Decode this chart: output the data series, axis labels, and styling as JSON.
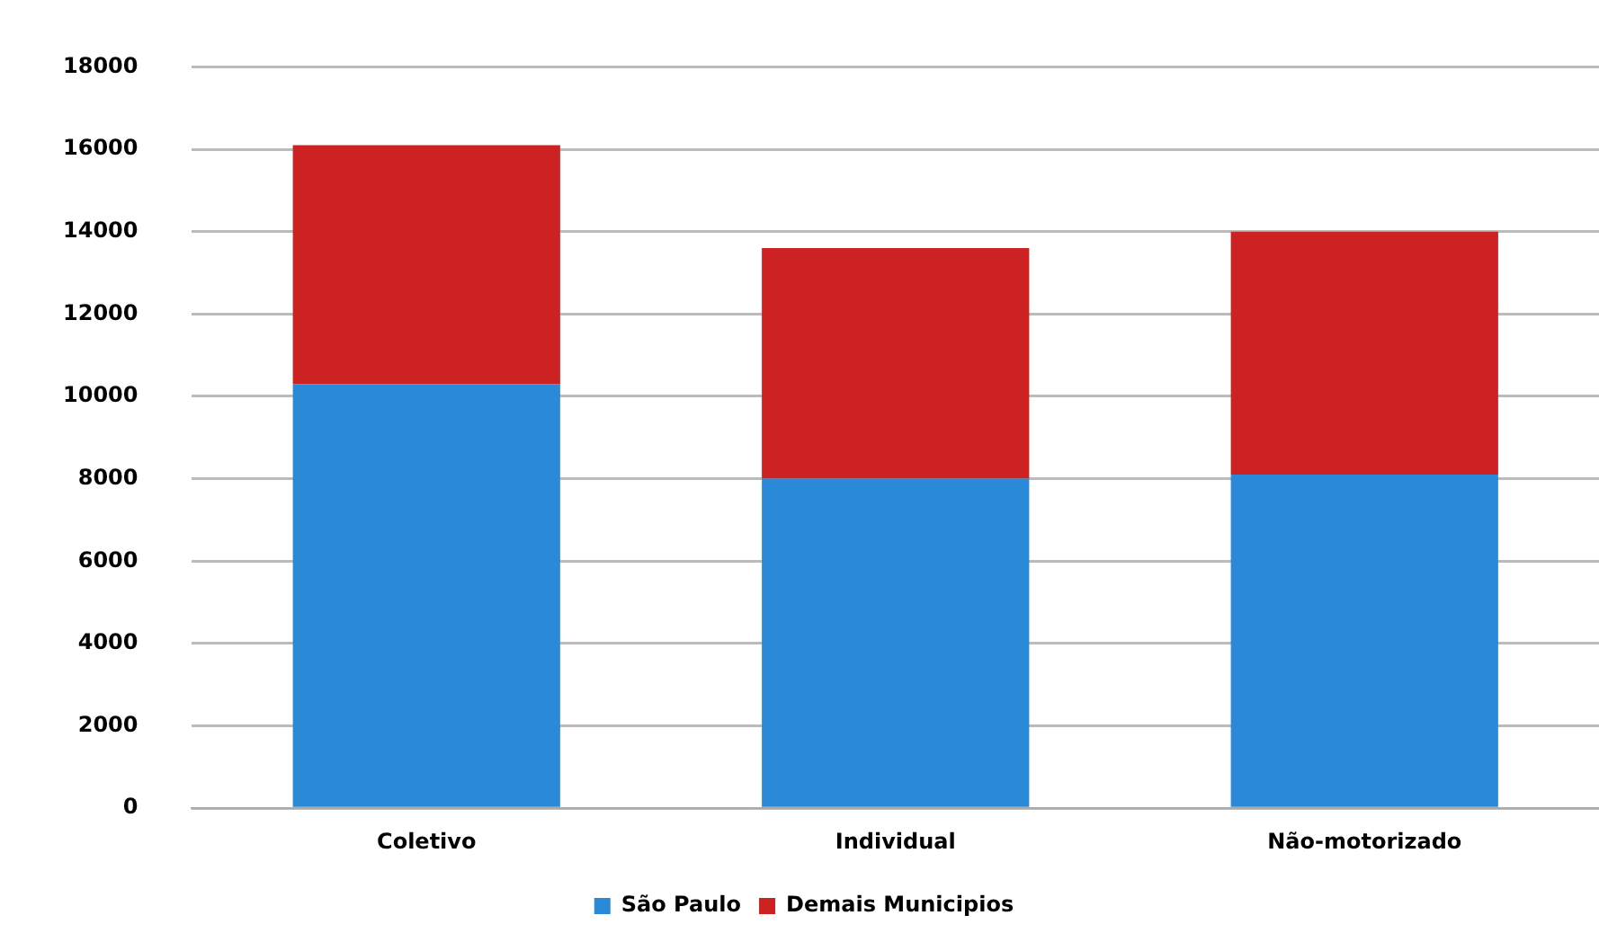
{
  "chart_data": {
    "type": "bar",
    "stacked": true,
    "categories": [
      "Coletivo",
      "Individual",
      "Não-motorizado"
    ],
    "series": [
      {
        "name": "São Paulo",
        "color": "#2a8ad8",
        "values": [
          10300,
          8000,
          8100
        ]
      },
      {
        "name": "Demais Municipios",
        "color": "#cc2222",
        "values": [
          5800,
          5600,
          5900
        ]
      }
    ],
    "ylim": [
      0,
      18000
    ],
    "yticks": [
      0,
      2000,
      4000,
      6000,
      8000,
      10000,
      12000,
      14000,
      16000,
      18000
    ],
    "grid": "y",
    "legend": "bottom"
  }
}
